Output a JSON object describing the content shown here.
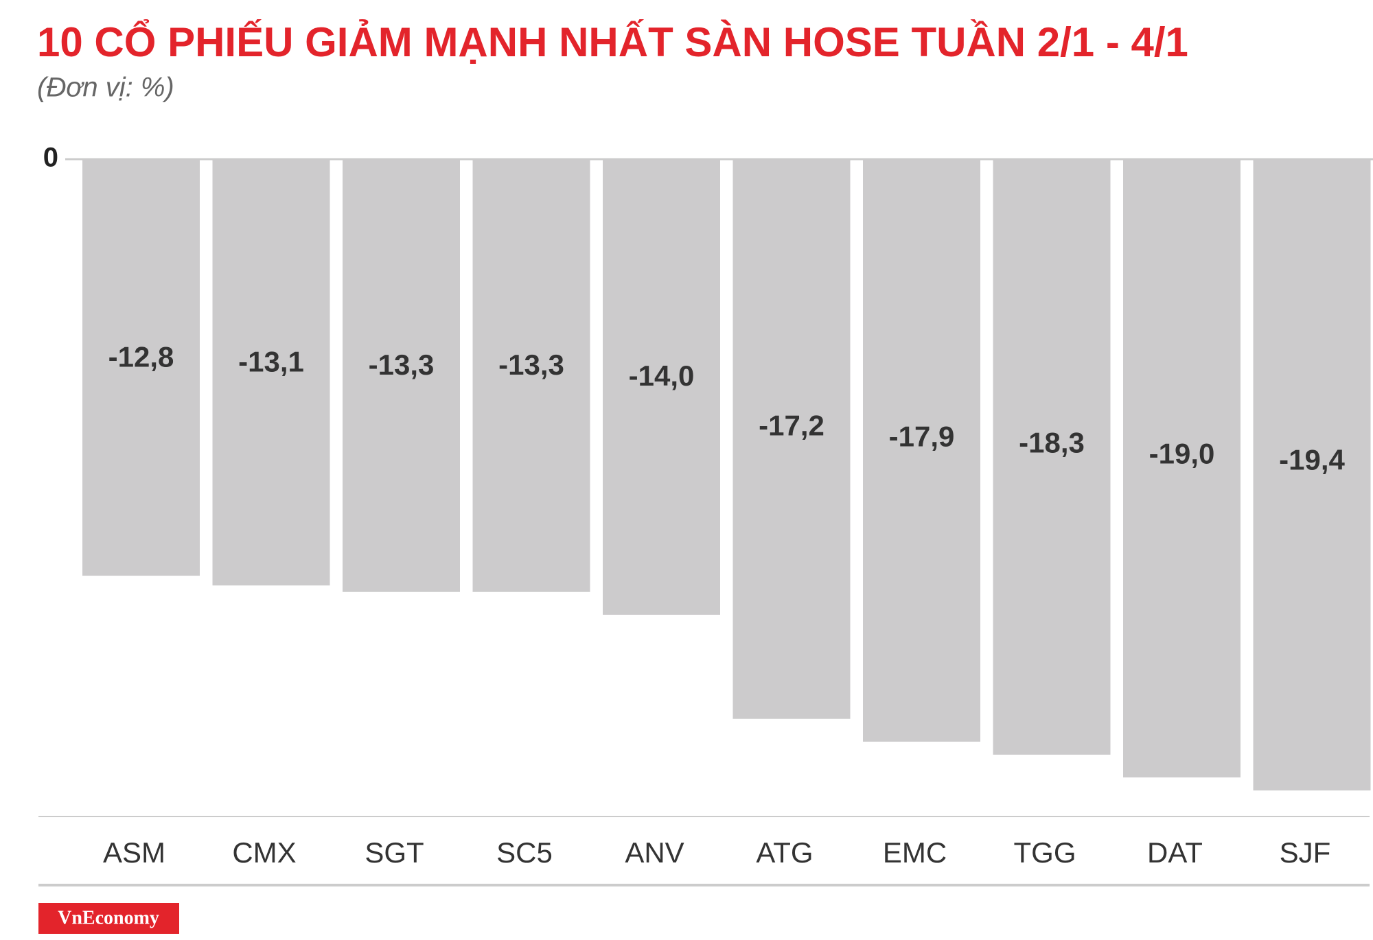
{
  "chart_data": {
    "type": "bar",
    "title": "10 CỔ PHIẾU GIẢM MẠNH NHẤT SÀN HOSE TUẦN 2/1 - 4/1",
    "subtitle": "(Đơn vị: %)",
    "categories": [
      "ASM",
      "CMX",
      "SGT",
      "SC5",
      "ANV",
      "ATG",
      "EMC",
      "TGG",
      "DAT",
      "SJF"
    ],
    "values": [
      -12.8,
      -13.1,
      -13.3,
      -13.3,
      -14.0,
      -17.2,
      -17.9,
      -18.3,
      -19.0,
      -19.4
    ],
    "value_labels": [
      "-12,8",
      "-13,1",
      "-13,3",
      "-13,3",
      "-14,0",
      "-17,2",
      "-17,9",
      "-18,3",
      "-19,0",
      "-19,4"
    ],
    "color": "#cccbcc",
    "ylim": [
      -20.2,
      0
    ],
    "yticks": [
      0
    ],
    "grid": true,
    "logo": "VnEconomy"
  }
}
